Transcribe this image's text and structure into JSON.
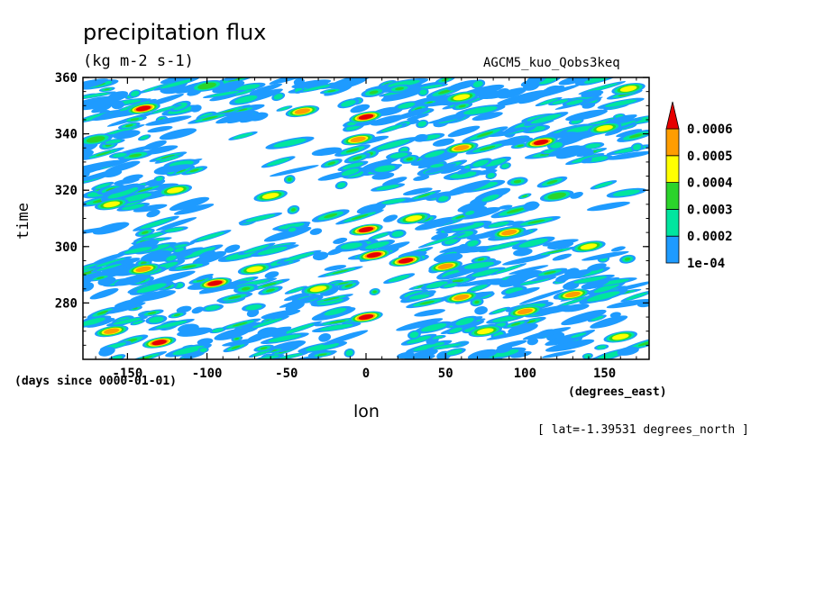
{
  "chart_data": {
    "type": "heatmap",
    "title": "precipitation flux",
    "units": "(kg m-2 s-1)",
    "dataset": "AGCM5_kuo_Qobs3keq",
    "xlabel": "lon",
    "xunits": "(degrees_east)",
    "ylabel": "time",
    "yunits": "(days since 0000-01-01)",
    "footnote": "[ lat=-1.39531 degrees_north ]",
    "xlim": [
      -178,
      178
    ],
    "ylim": [
      260,
      360
    ],
    "xticks": [
      -150,
      -100,
      -50,
      0,
      50,
      100,
      150
    ],
    "xtick_labels": [
      "-150",
      "-100",
      "-50",
      "0",
      "50",
      "100",
      "150"
    ],
    "yticks": [
      280,
      300,
      320,
      340,
      360
    ],
    "ytick_labels": [
      "280",
      "300",
      "320",
      "340",
      "360"
    ],
    "colorbar": {
      "levels": [
        "1e-04",
        "0.0002",
        "0.0003",
        "0.0004",
        "0.0005",
        "0.0006"
      ],
      "colors": [
        "#1e9bff",
        "#00e59f",
        "#2bd42b",
        "#ffff00",
        "#ff9d00",
        "#e60000"
      ]
    },
    "features": [
      {
        "lon": -160,
        "time": 270,
        "value": 0.0005
      },
      {
        "lon": -130,
        "time": 266,
        "value": 0.0006
      },
      {
        "lon": -140,
        "time": 292,
        "value": 0.0005
      },
      {
        "lon": -95,
        "time": 287,
        "value": 0.0006
      },
      {
        "lon": -70,
        "time": 292,
        "value": 0.0004
      },
      {
        "lon": -30,
        "time": 285,
        "value": 0.0004
      },
      {
        "lon": 0,
        "time": 275,
        "value": 0.0006
      },
      {
        "lon": 5,
        "time": 297,
        "value": 0.0006
      },
      {
        "lon": 25,
        "time": 295,
        "value": 0.0006
      },
      {
        "lon": 50,
        "time": 293,
        "value": 0.0005
      },
      {
        "lon": 60,
        "time": 282,
        "value": 0.0005
      },
      {
        "lon": 75,
        "time": 270,
        "value": 0.0004
      },
      {
        "lon": 100,
        "time": 277,
        "value": 0.0005
      },
      {
        "lon": 130,
        "time": 283,
        "value": 0.0005
      },
      {
        "lon": 160,
        "time": 268,
        "value": 0.0004
      },
      {
        "lon": 0,
        "time": 306,
        "value": 0.0006
      },
      {
        "lon": 30,
        "time": 310,
        "value": 0.0004
      },
      {
        "lon": 90,
        "time": 305,
        "value": 0.0005
      },
      {
        "lon": 140,
        "time": 300,
        "value": 0.0004
      },
      {
        "lon": -160,
        "time": 315,
        "value": 0.0004
      },
      {
        "lon": -120,
        "time": 320,
        "value": 0.0004
      },
      {
        "lon": -60,
        "time": 318,
        "value": 0.0004
      },
      {
        "lon": -5,
        "time": 338,
        "value": 0.0005
      },
      {
        "lon": 0,
        "time": 346,
        "value": 0.0006
      },
      {
        "lon": 60,
        "time": 335,
        "value": 0.0005
      },
      {
        "lon": 110,
        "time": 337,
        "value": 0.0006
      },
      {
        "lon": 150,
        "time": 342,
        "value": 0.0004
      },
      {
        "lon": -140,
        "time": 349,
        "value": 0.0006
      },
      {
        "lon": -40,
        "time": 348,
        "value": 0.0005
      },
      {
        "lon": 60,
        "time": 353,
        "value": 0.0004
      },
      {
        "lon": 165,
        "time": 356,
        "value": 0.0004
      },
      {
        "lon": -100,
        "time": 357,
        "value": 0.0003
      },
      {
        "lon": 120,
        "time": 318,
        "value": 0.0003
      },
      {
        "lon": -170,
        "time": 338,
        "value": 0.0003
      }
    ]
  }
}
